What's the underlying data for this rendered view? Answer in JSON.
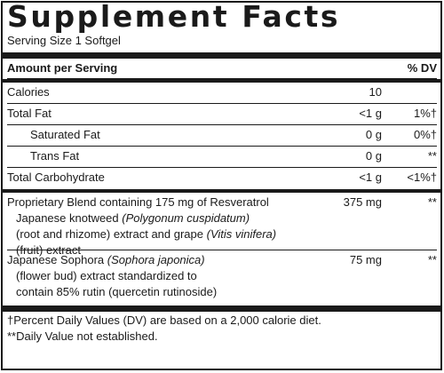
{
  "title": "Supplement Facts",
  "serving_size": "Serving Size 1 Softgel",
  "header": {
    "amount_label": "Amount per Serving",
    "dv_label": "% DV"
  },
  "nutrients": [
    {
      "name": "Calories",
      "amount": "10",
      "dv": ""
    },
    {
      "name": "Total Fat",
      "amount": "<1 g",
      "dv": "1%†"
    },
    {
      "name": "Saturated Fat",
      "amount": "0 g",
      "dv": "0%†"
    },
    {
      "name": "Trans Fat",
      "amount": "0 g",
      "dv": "**"
    },
    {
      "name": "Total Carbohydrate",
      "amount": "<1 g",
      "dv": "<1%†"
    }
  ],
  "blend": {
    "line1": "Proprietary Blend containing 175 mg of Resveratrol",
    "line2_plain": "Japanese knotweed ",
    "line2_italic": "(Polygonum cuspidatum)",
    "line3_plain": "(root and rhizome) extract and grape ",
    "line3_italic": "(Vitis vinifera)",
    "line4": "(fruit) extract",
    "amount": "375 mg",
    "dv": "**"
  },
  "sophora": {
    "line1_plain": "Japanese Sophora ",
    "line1_italic": "(Sophora japonica)",
    "line2": "(flower bud) extract standardized to",
    "line3": "contain 85% rutin (quercetin rutinoside)",
    "amount": "75 mg",
    "dv": "**"
  },
  "footnotes": [
    "†Percent Daily Values (DV) are based on a 2,000 calorie diet.",
    "**Daily Value not established."
  ]
}
